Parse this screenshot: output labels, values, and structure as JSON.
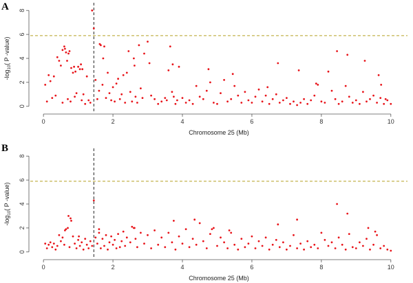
{
  "chart_data": [
    {
      "type": "scatter",
      "panel": "A",
      "xlabel": "Chromosome 25 (Mb)",
      "ylabel_main": "-log",
      "ylabel_sub": "10",
      "ylabel_rest": "( P -value)",
      "xlim": [
        -0.3,
        10.4
      ],
      "ylim": [
        -0.3,
        8.3
      ],
      "xticks": [
        0,
        2,
        4,
        6,
        8,
        10
      ],
      "yticks": [
        0,
        2,
        4,
        6,
        8
      ],
      "threshold": 5.9,
      "marker_x": 1.45,
      "x": [
        0.05,
        0.1,
        0.15,
        0.2,
        0.25,
        0.3,
        0.35,
        0.4,
        0.45,
        0.5,
        0.55,
        0.6,
        0.62,
        0.65,
        0.7,
        0.72,
        0.75,
        0.78,
        0.8,
        0.85,
        0.88,
        0.9,
        0.95,
        1.0,
        1.05,
        1.08,
        1.1,
        1.15,
        1.2,
        1.25,
        1.3,
        1.35,
        1.4,
        1.45,
        1.5,
        1.55,
        1.6,
        1.65,
        1.7,
        1.75,
        1.8,
        1.85,
        1.9,
        1.95,
        2.0,
        2.05,
        2.1,
        2.15,
        2.2,
        2.25,
        2.3,
        2.35,
        2.4,
        2.5,
        2.55,
        2.6,
        2.65,
        2.7,
        2.75,
        2.8,
        2.85,
        2.9,
        3.0,
        3.1,
        3.2,
        3.3,
        3.4,
        3.5,
        3.55,
        3.6,
        3.7,
        3.75,
        3.8,
        3.85,
        3.9,
        4.0,
        4.1,
        4.2,
        4.3,
        4.4,
        4.5,
        4.6,
        4.7,
        4.8,
        4.9,
        5.0,
        5.1,
        5.2,
        5.3,
        5.4,
        5.5,
        5.6,
        5.7,
        5.8,
        5.9,
        6.0,
        6.1,
        6.2,
        6.3,
        6.4,
        6.5,
        6.6,
        6.7,
        6.8,
        6.9,
        7.0,
        7.1,
        7.2,
        7.3,
        7.4,
        7.5,
        7.6,
        7.7,
        7.8,
        7.9,
        8.0,
        8.1,
        8.2,
        8.3,
        8.4,
        8.5,
        8.6,
        8.7,
        8.8,
        8.9,
        9.0,
        9.1,
        9.2,
        9.3,
        9.4,
        9.5,
        9.6,
        9.7,
        9.8,
        9.9,
        10.0,
        0.55,
        0.68,
        0.92,
        1.12,
        1.62,
        1.72,
        2.45,
        2.62,
        3.05,
        3.65,
        3.72,
        4.75,
        5.45,
        6.45,
        6.75,
        7.35,
        7.85,
        8.45,
        8.75,
        9.25,
        9.65,
        9.72,
        9.85
      ],
      "y": [
        1.8,
        0.4,
        2.6,
        2.1,
        0.7,
        2.5,
        0.9,
        4.1,
        3.8,
        3.4,
        0.3,
        5.0,
        4.8,
        4.5,
        0.6,
        4.4,
        4.6,
        0.4,
        3.2,
        2.8,
        3.3,
        0.8,
        1.1,
        3.3,
        3.1,
        3.5,
        0.5,
        1.0,
        0.2,
        2.5,
        0.5,
        0.3,
        8.0,
        6.5,
        2.2,
        0.6,
        1.3,
        5.1,
        1.8,
        5.0,
        0.7,
        2.8,
        1.1,
        0.5,
        1.6,
        0.4,
        1.9,
        2.3,
        0.6,
        1.0,
        2.6,
        0.3,
        2.8,
        1.2,
        0.4,
        4.0,
        0.8,
        0.3,
        5.1,
        1.5,
        0.7,
        4.4,
        5.4,
        0.9,
        0.6,
        0.2,
        0.4,
        0.7,
        0.5,
        3.0,
        1.2,
        0.8,
        0.2,
        0.5,
        3.3,
        0.7,
        0.3,
        0.5,
        0.2,
        1.7,
        0.8,
        0.6,
        1.3,
        2.0,
        0.3,
        0.2,
        1.1,
        2.2,
        0.4,
        0.6,
        1.7,
        0.9,
        0.3,
        1.2,
        0.5,
        0.3,
        0.8,
        1.4,
        0.4,
        0.9,
        0.2,
        0.6,
        1.0,
        0.3,
        0.5,
        0.7,
        0.2,
        0.4,
        0.1,
        0.3,
        0.6,
        0.2,
        0.5,
        0.9,
        1.8,
        0.4,
        0.3,
        2.9,
        1.3,
        0.6,
        0.2,
        0.4,
        1.7,
        0.8,
        0.3,
        0.5,
        0.2,
        1.2,
        0.4,
        0.6,
        0.9,
        0.3,
        0.7,
        0.2,
        0.5,
        0.2,
        4.7,
        3.8,
        2.9,
        3.1,
        5.2,
        4.0,
        4.6,
        3.4,
        3.6,
        5.0,
        3.5,
        3.1,
        2.7,
        1.6,
        3.6,
        3.0,
        1.9,
        4.6,
        4.3,
        3.8,
        2.6,
        1.8,
        0.6
      ]
    },
    {
      "type": "scatter",
      "panel": "B",
      "xlabel": "Chromosome 25 (Mb)",
      "ylabel_main": "-log",
      "ylabel_sub": "10",
      "ylabel_rest": "( P -value)",
      "xlim": [
        -0.3,
        10.4
      ],
      "ylim": [
        -0.3,
        8.3
      ],
      "xticks": [
        0,
        2,
        4,
        6,
        8,
        10
      ],
      "yticks": [
        0,
        2,
        4,
        6,
        8
      ],
      "threshold": 5.9,
      "marker_x": 1.45,
      "x": [
        0.05,
        0.1,
        0.15,
        0.2,
        0.25,
        0.3,
        0.35,
        0.4,
        0.45,
        0.5,
        0.55,
        0.6,
        0.65,
        0.7,
        0.75,
        0.8,
        0.85,
        0.9,
        0.95,
        1.0,
        1.05,
        1.1,
        1.15,
        1.2,
        1.25,
        1.3,
        1.35,
        1.4,
        1.45,
        1.5,
        1.55,
        1.6,
        1.65,
        1.7,
        1.75,
        1.8,
        1.85,
        1.9,
        1.95,
        2.0,
        2.05,
        2.1,
        2.15,
        2.2,
        2.25,
        2.3,
        2.35,
        2.4,
        2.5,
        2.6,
        2.65,
        2.7,
        2.8,
        2.9,
        3.0,
        3.1,
        3.2,
        3.3,
        3.4,
        3.5,
        3.6,
        3.7,
        3.8,
        3.9,
        4.0,
        4.1,
        4.2,
        4.3,
        4.4,
        4.5,
        4.6,
        4.7,
        4.8,
        4.9,
        5.0,
        5.1,
        5.2,
        5.3,
        5.4,
        5.5,
        5.6,
        5.7,
        5.8,
        5.9,
        6.0,
        6.1,
        6.2,
        6.3,
        6.4,
        6.5,
        6.6,
        6.7,
        6.8,
        6.9,
        7.0,
        7.1,
        7.2,
        7.3,
        7.4,
        7.5,
        7.6,
        7.7,
        7.8,
        7.9,
        8.0,
        8.1,
        8.2,
        8.3,
        8.4,
        8.5,
        8.6,
        8.7,
        8.8,
        8.9,
        9.0,
        9.1,
        9.2,
        9.3,
        9.4,
        9.5,
        9.6,
        9.7,
        9.8,
        9.9,
        10.0,
        0.72,
        0.78,
        0.62,
        1.02,
        1.6,
        2.55,
        2.62,
        3.75,
        4.35,
        4.85,
        5.35,
        6.75,
        7.3,
        8.45,
        8.75,
        9.35,
        9.55
      ],
      "y": [
        0.7,
        0.3,
        0.6,
        0.8,
        0.4,
        0.7,
        0.2,
        0.5,
        1.4,
        0.9,
        1.2,
        0.6,
        1.9,
        2.0,
        0.4,
        2.6,
        1.3,
        0.7,
        0.3,
        1.0,
        0.5,
        0.8,
        0.2,
        1.1,
        0.6,
        0.3,
        0.9,
        0.5,
        4.3,
        1.2,
        0.7,
        1.6,
        0.3,
        1.1,
        0.5,
        1.4,
        0.2,
        0.8,
        1.3,
        0.6,
        1.0,
        0.3,
        1.5,
        0.4,
        0.9,
        1.7,
        0.5,
        1.2,
        0.8,
        2.0,
        1.1,
        0.4,
        1.6,
        0.7,
        1.4,
        0.3,
        1.8,
        0.6,
        1.2,
        0.4,
        1.6,
        0.8,
        0.2,
        1.3,
        0.7,
        1.9,
        0.4,
        1.1,
        0.6,
        2.4,
        0.9,
        0.3,
        1.5,
        2.0,
        0.5,
        1.2,
        0.8,
        0.3,
        1.6,
        0.6,
        0.2,
        1.1,
        0.4,
        0.7,
        1.3,
        0.3,
        0.9,
        0.5,
        1.2,
        0.2,
        0.6,
        1.0,
        0.4,
        0.8,
        0.2,
        0.5,
        1.4,
        0.3,
        0.7,
        0.2,
        0.9,
        0.4,
        0.6,
        0.3,
        1.6,
        1.0,
        0.5,
        0.8,
        0.3,
        1.2,
        0.6,
        0.2,
        1.5,
        0.4,
        0.3,
        0.8,
        0.5,
        1.1,
        0.2,
        0.6,
        1.4,
        0.3,
        0.5,
        0.2,
        0.1,
        3.0,
        2.8,
        1.8,
        1.3,
        1.9,
        2.1,
        2.0,
        2.6,
        2.7,
        1.9,
        1.8,
        2.3,
        2.7,
        4.0,
        3.2,
        2.0,
        1.7
      ]
    }
  ]
}
